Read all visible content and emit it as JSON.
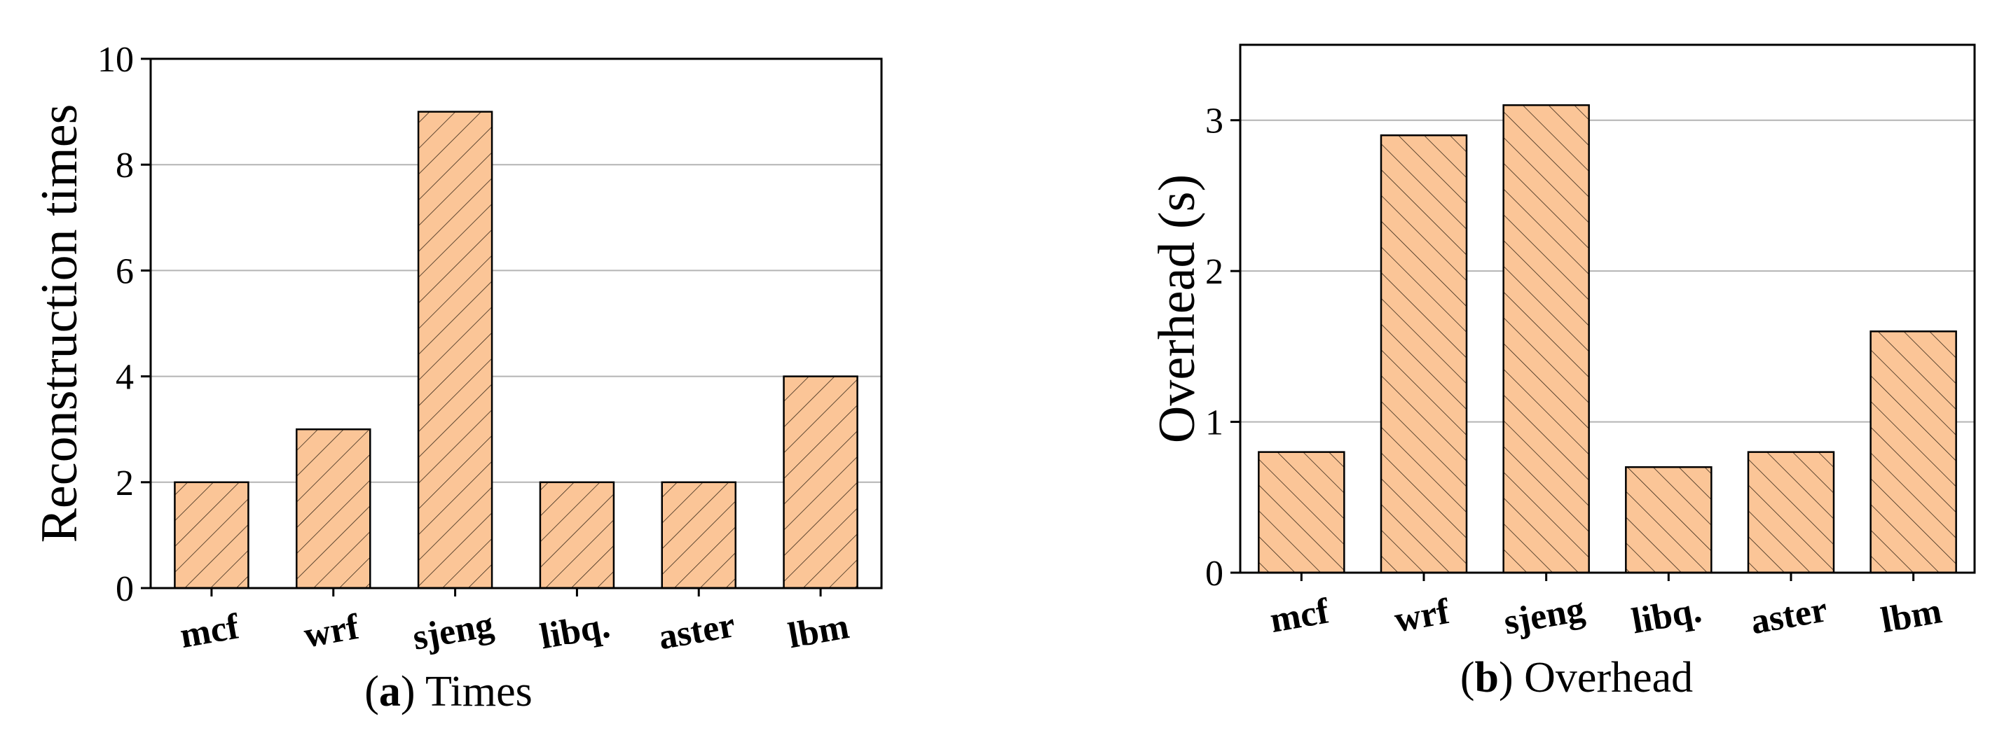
{
  "colors": {
    "bar_fill": "#FBC597",
    "bar_stroke": "#000000",
    "hatch": "#3a2a1a",
    "grid": "#b4b4b4"
  },
  "chart_data": [
    {
      "type": "bar",
      "subfigure_tag": "a",
      "caption": "Times",
      "categories": [
        "mcf",
        "wrf",
        "sjeng",
        "libq.",
        "aster",
        "lbm"
      ],
      "values": [
        2,
        3,
        9,
        2,
        2,
        4
      ],
      "xlabel": "",
      "ylabel": "Reconstruction times",
      "ylim": [
        0,
        10
      ],
      "yticks": [
        0,
        2,
        4,
        6,
        8,
        10
      ],
      "grid": true,
      "hatch": "forward-diagonal"
    },
    {
      "type": "bar",
      "subfigure_tag": "b",
      "caption": "Overhead",
      "categories": [
        "mcf",
        "wrf",
        "sjeng",
        "libq.",
        "aster",
        "lbm"
      ],
      "values": [
        0.8,
        2.9,
        3.1,
        0.7,
        0.8,
        1.6
      ],
      "xlabel": "",
      "ylabel": "Overhead (s)",
      "ylim": [
        0,
        3.5
      ],
      "yticks": [
        0,
        1,
        2,
        3
      ],
      "grid": true,
      "hatch": "back-diagonal"
    }
  ]
}
